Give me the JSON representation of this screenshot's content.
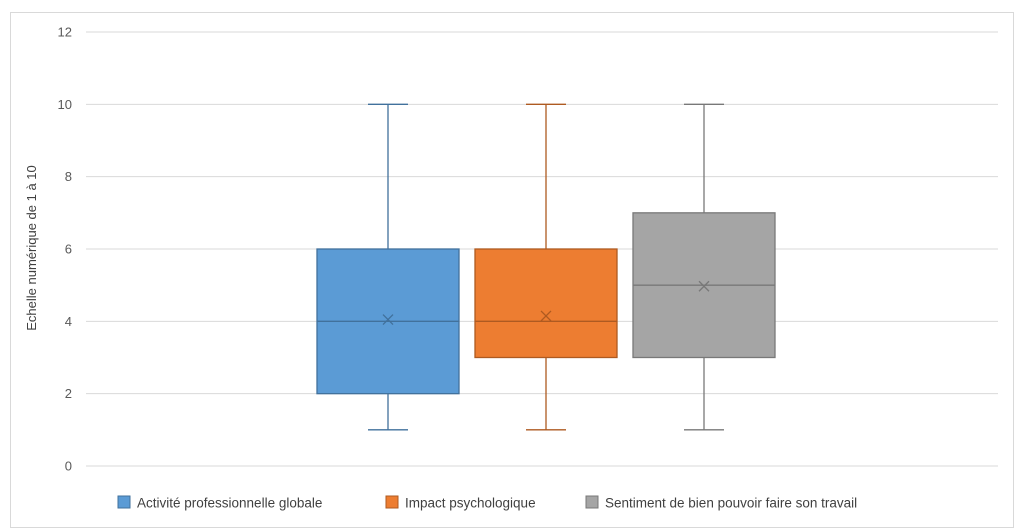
{
  "chart_data": {
    "type": "box",
    "title": "",
    "xlabel": "",
    "ylabel": "Echelle numérique de 1 à 10",
    "ylim": [
      0,
      12
    ],
    "yticks": [
      0,
      2,
      4,
      6,
      8,
      10,
      12
    ],
    "grid": true,
    "legend_position": "bottom",
    "series": [
      {
        "name": "Activité professionnelle globale",
        "color": "#5b9bd5",
        "stroke": "#41719c",
        "min": 1,
        "q1": 2,
        "median": 4,
        "q3": 6,
        "max": 10,
        "mean": 4.05
      },
      {
        "name": "Impact psychologique",
        "color": "#ed7d31",
        "stroke": "#ae5a21",
        "min": 1,
        "q1": 3,
        "median": 4,
        "q3": 6,
        "max": 10,
        "mean": 4.15
      },
      {
        "name": "Sentiment de bien pouvoir faire son travail",
        "color": "#a5a5a5",
        "stroke": "#787878",
        "min": 1,
        "q1": 3,
        "median": 5,
        "q3": 7,
        "max": 10,
        "mean": 4.97
      }
    ]
  }
}
